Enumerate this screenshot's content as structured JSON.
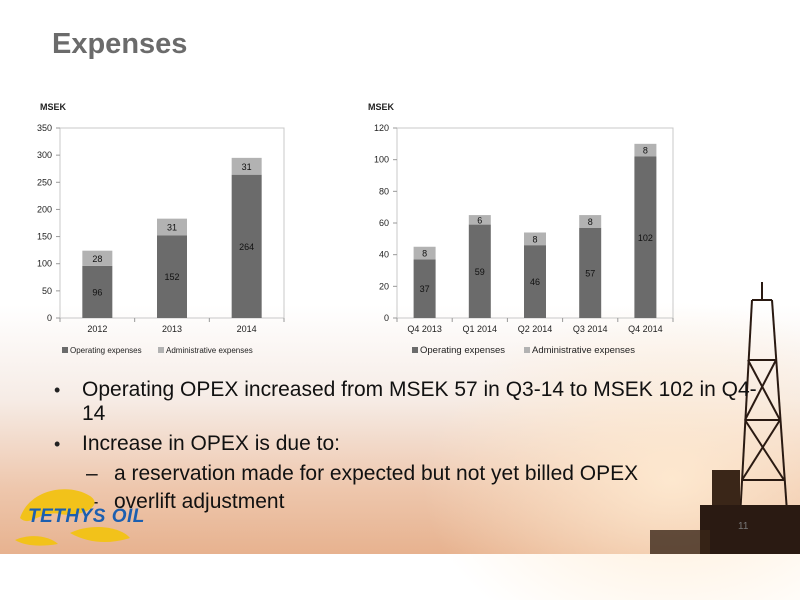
{
  "slide": {
    "title": "Expenses",
    "page_number": "11",
    "logo_text": "TETHYS OIL"
  },
  "bullets": [
    {
      "level": 1,
      "text": "Operating OPEX increased from MSEK 57 in Q3-14 to MSEK 102 in Q4-14"
    },
    {
      "level": 1,
      "text": "Increase in OPEX is due to:"
    },
    {
      "level": 2,
      "text": "a reservation made for expected but not yet billed OPEX"
    },
    {
      "level": 2,
      "text": "overlift adjustment"
    }
  ],
  "colors": {
    "operating": "#6b6b6b",
    "administrative": "#b2b2b2",
    "axis": "#999999"
  },
  "chart_data": [
    {
      "type": "bar",
      "stacked": true,
      "unit_label": "MSEK",
      "categories": [
        "2012",
        "2013",
        "2014"
      ],
      "series": [
        {
          "name": "Operating expenses",
          "values": [
            96,
            152,
            264
          ]
        },
        {
          "name": "Administrative expenses",
          "values": [
            28,
            31,
            31
          ]
        }
      ],
      "ylim": [
        0,
        350
      ],
      "yticks": [
        0,
        50,
        100,
        150,
        200,
        250,
        300,
        350
      ],
      "legend": "bottom"
    },
    {
      "type": "bar",
      "stacked": true,
      "unit_label": "MSEK",
      "categories": [
        "Q4 2013",
        "Q1 2014",
        "Q2 2014",
        "Q3 2014",
        "Q4 2014"
      ],
      "series": [
        {
          "name": "Operating expenses",
          "values": [
            37,
            59,
            46,
            57,
            102
          ]
        },
        {
          "name": "Administrative expenses",
          "values": [
            8,
            6,
            8,
            8,
            8
          ]
        }
      ],
      "ylim": [
        0,
        120
      ],
      "yticks": [
        0,
        20,
        40,
        60,
        80,
        100,
        120
      ],
      "legend": "bottom"
    }
  ]
}
